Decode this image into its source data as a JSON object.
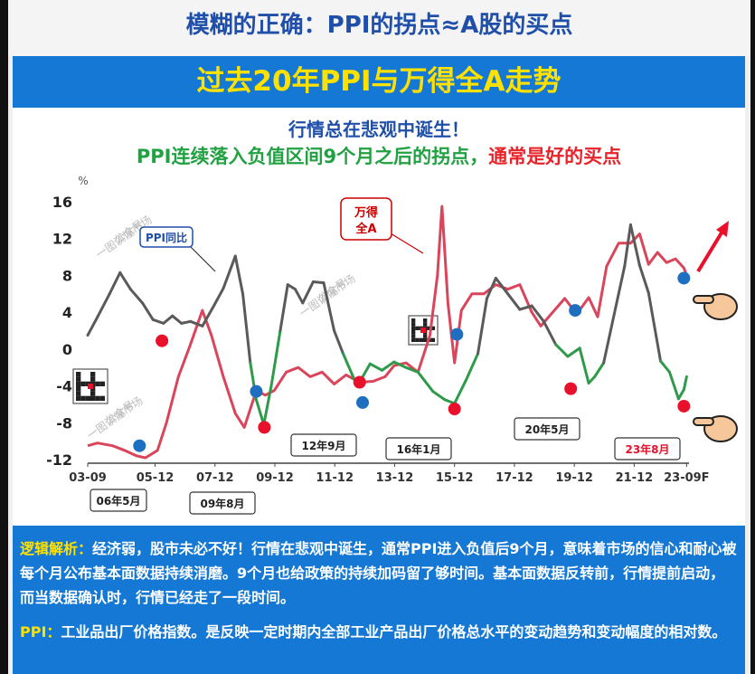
{
  "headline": "模糊的正确：PPI的拐点≈A股的买点",
  "banner": "过去20年PPI与万得全A走势",
  "subtitle_line1": "行情总在悲观中诞生！",
  "subtitle_line2_green": "PPI连续落入负值区间9个月之后的拐点，",
  "subtitle_line2_red": "通常是好的买点",
  "analysis": {
    "label1": "逻辑解析：",
    "text1": "经济弱，股市未必不好！行情在悲观中诞生，通常PPI进入负值后9个月，意味着市场的信心和耐心被每个月公布基本面数据持续消磨。9个月也给政策的持续加码留了够时间。基本面数据反转前，行情提前启动，而当数据确认时，行情已经走了一段时间。",
    "label2": "PPI：",
    "text2": "工业品出厂价格指数。是反映一定时期内全部工业产品出厂价格总水平的变动趋势和变动幅度的相对数。"
  },
  "watermark": [
    "公众号",
    "一图读懂市场"
  ],
  "colors": {
    "ppi": "#5a5a5a",
    "ppi_negative": "#2e9a4a",
    "wind": "#d9455a",
    "blue_dot": "#1f6fc0",
    "red_dot": "#e8102a",
    "arrow": "#e8102a"
  },
  "chart_data": {
    "type": "line",
    "y_unit": "%",
    "ylim": [
      -12,
      16
    ],
    "yticks": [
      -12,
      -8,
      -4,
      0,
      4,
      8,
      12,
      16
    ],
    "xlim": [
      2003.67,
      2023.75
    ],
    "xticks": [
      {
        "label": "03-09",
        "x": 2003.67
      },
      {
        "label": "05-12",
        "x": 2005.92
      },
      {
        "label": "07-12",
        "x": 2007.92
      },
      {
        "label": "09-12",
        "x": 2009.92
      },
      {
        "label": "11-12",
        "x": 2011.92
      },
      {
        "label": "13-12",
        "x": 2013.92
      },
      {
        "label": "15-12",
        "x": 2015.92
      },
      {
        "label": "17-12",
        "x": 2017.92
      },
      {
        "label": "19-12",
        "x": 2019.92
      },
      {
        "label": "21-12",
        "x": 2021.92
      },
      {
        "label": "23-09F",
        "x": 2023.67
      }
    ],
    "series": [
      {
        "name": "PPI同比",
        "points": [
          [
            2003.67,
            1.5
          ],
          [
            2004.0,
            3.5
          ],
          [
            2004.4,
            6.0
          ],
          [
            2004.75,
            8.3
          ],
          [
            2005.1,
            6.5
          ],
          [
            2005.5,
            5.0
          ],
          [
            2005.85,
            3.2
          ],
          [
            2006.2,
            2.8
          ],
          [
            2006.5,
            3.6
          ],
          [
            2006.8,
            2.8
          ],
          [
            2007.1,
            3.0
          ],
          [
            2007.5,
            2.5
          ],
          [
            2007.9,
            4.8
          ],
          [
            2008.2,
            6.6
          ],
          [
            2008.6,
            10.1
          ],
          [
            2008.85,
            6.0
          ],
          [
            2009.1,
            -1.5
          ],
          [
            2009.3,
            -5.5
          ],
          [
            2009.55,
            -8.2
          ],
          [
            2009.8,
            -4.0
          ],
          [
            2010.1,
            2.0
          ],
          [
            2010.35,
            7.0
          ],
          [
            2010.6,
            6.5
          ],
          [
            2010.85,
            5.0
          ],
          [
            2011.2,
            7.3
          ],
          [
            2011.55,
            7.2
          ],
          [
            2011.9,
            2.0
          ],
          [
            2012.2,
            -0.5
          ],
          [
            2012.6,
            -3.5
          ],
          [
            2012.75,
            -3.6
          ],
          [
            2013.1,
            -1.6
          ],
          [
            2013.5,
            -2.3
          ],
          [
            2013.9,
            -1.4
          ],
          [
            2014.3,
            -2.0
          ],
          [
            2014.7,
            -2.5
          ],
          [
            2015.2,
            -4.6
          ],
          [
            2015.6,
            -5.5
          ],
          [
            2015.92,
            -5.9
          ],
          [
            2016.3,
            -3.4
          ],
          [
            2016.7,
            -0.5
          ],
          [
            2017.0,
            5.5
          ],
          [
            2017.3,
            7.7
          ],
          [
            2017.7,
            6.0
          ],
          [
            2018.1,
            4.3
          ],
          [
            2018.5,
            4.7
          ],
          [
            2018.9,
            3.0
          ],
          [
            2019.3,
            0.5
          ],
          [
            2019.7,
            -0.8
          ],
          [
            2020.1,
            0.1
          ],
          [
            2020.4,
            -3.7
          ],
          [
            2020.6,
            -3.0
          ],
          [
            2020.9,
            -1.5
          ],
          [
            2021.2,
            3.0
          ],
          [
            2021.6,
            9.0
          ],
          [
            2021.8,
            13.5
          ],
          [
            2022.1,
            9.1
          ],
          [
            2022.4,
            6.1
          ],
          [
            2022.8,
            -1.3
          ],
          [
            2023.1,
            -2.5
          ],
          [
            2023.4,
            -5.4
          ],
          [
            2023.58,
            -4.4
          ],
          [
            2023.67,
            -3.0
          ]
        ]
      },
      {
        "name": "万得全A",
        "points": [
          [
            2003.67,
            -10.5
          ],
          [
            2004.0,
            -10.2
          ],
          [
            2004.5,
            -10.5
          ],
          [
            2004.9,
            -11.0
          ],
          [
            2005.3,
            -11.6
          ],
          [
            2005.6,
            -11.8
          ],
          [
            2006.0,
            -11.0
          ],
          [
            2006.3,
            -8.0
          ],
          [
            2006.7,
            -3.0
          ],
          [
            2007.1,
            0.5
          ],
          [
            2007.5,
            4.2
          ],
          [
            2007.8,
            1.5
          ],
          [
            2008.2,
            -3.0
          ],
          [
            2008.6,
            -7.0
          ],
          [
            2008.9,
            -8.5
          ],
          [
            2009.3,
            -4.5
          ],
          [
            2009.6,
            -5.0
          ],
          [
            2009.9,
            -4.5
          ],
          [
            2010.3,
            -2.5
          ],
          [
            2010.7,
            -2.0
          ],
          [
            2011.1,
            -3.0
          ],
          [
            2011.5,
            -2.5
          ],
          [
            2011.9,
            -3.8
          ],
          [
            2012.3,
            -2.8
          ],
          [
            2012.75,
            -3.6
          ],
          [
            2013.2,
            -3.5
          ],
          [
            2013.6,
            -3.0
          ],
          [
            2013.9,
            -1.8
          ],
          [
            2014.3,
            -1.5
          ],
          [
            2014.7,
            -2.5
          ],
          [
            2015.1,
            1.5
          ],
          [
            2015.35,
            8.0
          ],
          [
            2015.5,
            15.5
          ],
          [
            2015.7,
            5.0
          ],
          [
            2015.92,
            -1.5
          ],
          [
            2016.15,
            4.2
          ],
          [
            2016.5,
            6.0
          ],
          [
            2016.9,
            6.0
          ],
          [
            2017.3,
            7.0
          ],
          [
            2017.7,
            6.5
          ],
          [
            2018.1,
            7.0
          ],
          [
            2018.5,
            4.0
          ],
          [
            2018.8,
            2.5
          ],
          [
            2019.2,
            4.0
          ],
          [
            2019.6,
            5.5
          ],
          [
            2020.0,
            3.8
          ],
          [
            2020.4,
            5.6
          ],
          [
            2020.7,
            3.5
          ],
          [
            2021.0,
            9.0
          ],
          [
            2021.4,
            11.5
          ],
          [
            2021.8,
            11.5
          ],
          [
            2022.1,
            12.5
          ],
          [
            2022.4,
            9.2
          ],
          [
            2022.7,
            10.5
          ],
          [
            2023.0,
            9.4
          ],
          [
            2023.3,
            9.8
          ],
          [
            2023.58,
            8.8
          ],
          [
            2023.67,
            8.0
          ]
        ]
      }
    ],
    "blue_dots": [
      [
        2005.4,
        -10.5
      ],
      [
        2009.3,
        -4.6
      ],
      [
        2012.85,
        -5.8
      ],
      [
        2016.0,
        1.6
      ],
      [
        2019.95,
        4.2
      ],
      [
        2023.58,
        7.7
      ]
    ],
    "red_dots": [
      [
        2006.15,
        0.9
      ],
      [
        2009.57,
        -8.5
      ],
      [
        2012.75,
        -3.6
      ],
      [
        2015.92,
        -6.5
      ],
      [
        2019.8,
        -4.3
      ],
      [
        2023.58,
        -6.2
      ]
    ],
    "annotations": [
      {
        "text": "06年5月",
        "style": "white"
      },
      {
        "text": "09年8月",
        "style": "white"
      },
      {
        "text": "12年9月",
        "style": "white"
      },
      {
        "text": "16年1月",
        "style": "white"
      },
      {
        "text": "20年5月",
        "style": "white"
      },
      {
        "text": "23年8月",
        "style": "red-text"
      }
    ],
    "callouts": [
      {
        "text": "PPI同比"
      },
      {
        "text": "万得\n全A"
      }
    ]
  }
}
